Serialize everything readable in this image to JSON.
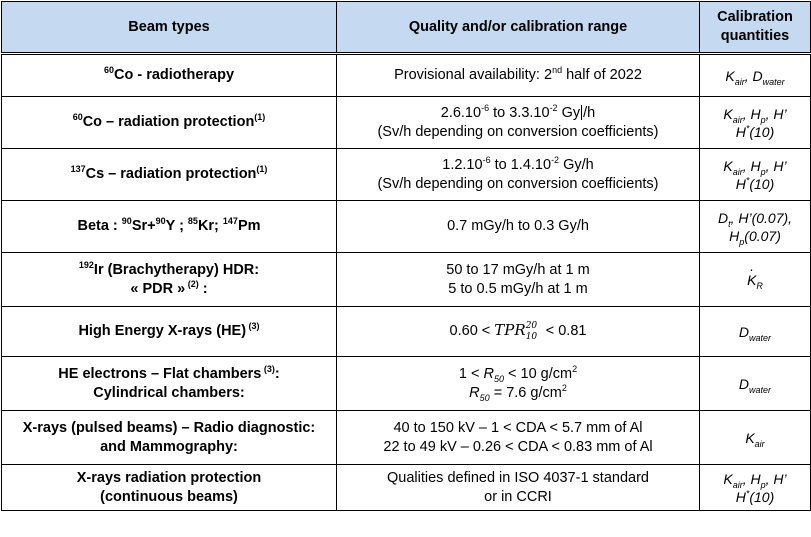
{
  "header": {
    "beam_types": "Beam types",
    "quality_range": "Quality and/or calibration range",
    "calibration_quantities_1": "Calibration",
    "calibration_quantities_2": "quantities"
  },
  "rows": [
    {
      "beam": {
        "sup": "60",
        "text": "Co - radiotherapy"
      },
      "range": {
        "pre": "Provisional availability: 2",
        "sup": "nd",
        "post": " half of 2022"
      },
      "quantities": {
        "a": "K",
        "a_sub": "air",
        "sep": ", ",
        "b": "D",
        "b_sub": "water"
      }
    },
    {
      "beam": {
        "sup": "60",
        "text": "Co – radiation protection",
        "note": "(1)"
      },
      "range": {
        "l1_a": "2.6.10",
        "l1_a_sup": "-6",
        "l1_b": " to 3.3.10",
        "l1_b_sup": "-2",
        "l1_c": " Gy",
        "l1_d": "/h",
        "l2": "(Sv/h depending on conversion coefficients)"
      },
      "quantities": {
        "l1_a": "K",
        "l1_a_sub": "air",
        "l1_b": ", H",
        "l1_b_sub": "p",
        "l1_c": ", H’",
        "l2_a": "H",
        "l2_sup": "*",
        "l2_b": "(10)"
      }
    },
    {
      "beam": {
        "sup": "137",
        "text": "Cs – radiation protection",
        "note": "(1)"
      },
      "range": {
        "l1_a": "1.2.10",
        "l1_a_sup": "-6",
        "l1_b": " to 1.4.10",
        "l1_b_sup": "-2",
        "l1_c": " Gy/h",
        "l2": "(Sv/h depending on conversion coefficients)"
      },
      "quantities": {
        "l1_a": "K",
        "l1_a_sub": "air",
        "l1_b": ", H",
        "l1_b_sub": "p",
        "l1_c": ", H’",
        "l2_a": "H",
        "l2_sup": "*",
        "l2_b": "(10)"
      }
    },
    {
      "beam": {
        "pre": "Beta : ",
        "s1": "90",
        "t1": "Sr+",
        "s2": "90",
        "t2": "Y ; ",
        "s3": "85",
        "t3": "Kr; ",
        "s4": "147",
        "t4": "Pm"
      },
      "range": {
        "text": "0.7 mGy/h to 0.3 Gy/h"
      },
      "quantities": {
        "l1_a": "D",
        "l1_a_sub": "t",
        "l1_b": ", H’(0.07),",
        "l2_a": "H",
        "l2_sub": "p",
        "l2_b": "(0.07)"
      }
    },
    {
      "beam": {
        "l1_sup": "192",
        "l1": "Ir (Brachytherapy) HDR:",
        "l2": "« PDR »",
        "l2_sup": " (2)",
        "l2_post": " :"
      },
      "range": {
        "l1": "50 to 17 mGy/h at 1 m",
        "l2": "5 to 0.5  mGy/h at 1 m"
      },
      "quantities": {
        "k": "K",
        "k_sub": "R"
      }
    },
    {
      "beam": {
        "text": "High Energy X-rays (HE)",
        "note": " (3)"
      },
      "range": {
        "pre": "0.60 < ",
        "tpr": "TPR",
        "tpr_sup": "20",
        "tpr_sub": "10",
        "post": "  <  0.81"
      },
      "quantities": {
        "a": "D",
        "a_sub": "water"
      }
    },
    {
      "beam": {
        "l1": "HE electrons – Flat chambers",
        "l1_sup": " (3)",
        "l1_post": ":",
        "l2": "Cylindrical chambers:"
      },
      "range": {
        "l1_pre": "1 < ",
        "l1_r": "R",
        "l1_r_sub": "50",
        "l1_post": " < 10 g/cm",
        "l1_sup": "2",
        "l2_r": "R",
        "l2_r_sub": "50",
        "l2_post": " = 7.6 g/cm",
        "l2_sup": "2"
      },
      "quantities": {
        "a": "D",
        "a_sub": "water"
      }
    },
    {
      "beam": {
        "l1": "X-rays (pulsed beams) – Radio diagnostic:",
        "l2": "and Mammography:"
      },
      "range": {
        "l1": "40 to 150 kV – 1 < CDA < 5.7 mm of Al",
        "l2": "22 to 49 kV – 0.26 < CDA < 0.83 mm of Al"
      },
      "quantities": {
        "a": "K",
        "a_sub": "air"
      }
    },
    {
      "beam": {
        "l1": "X-rays radiation protection",
        "l2": "(continuous beams)"
      },
      "range": {
        "l1": "Qualities defined in ISO 4037-1 standard",
        "l2": "or in CCRI"
      },
      "quantities": {
        "l1_a": "K",
        "l1_a_sub": "air",
        "l1_b": ", H",
        "l1_b_sub": "p",
        "l1_c": ", H’",
        "l2_a": "H",
        "l2_sup": "*",
        "l2_b": "(10)"
      }
    }
  ]
}
